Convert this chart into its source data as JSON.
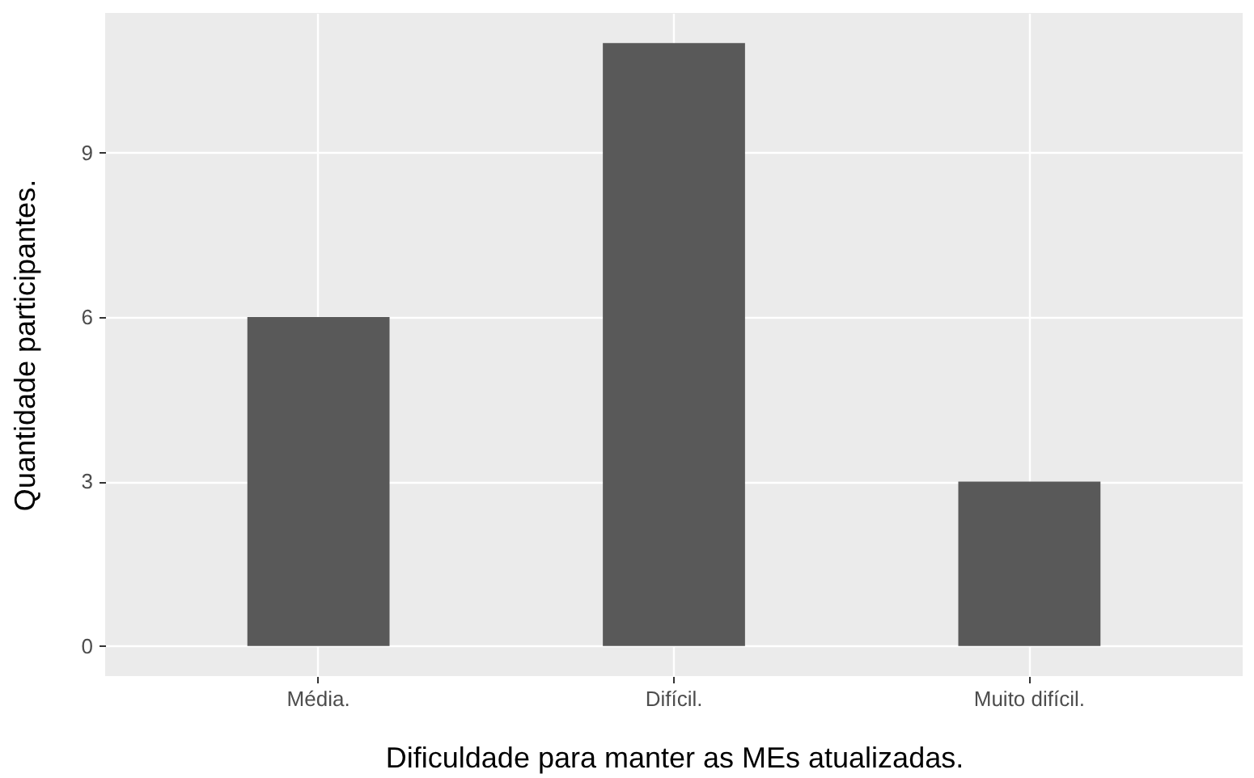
{
  "chart_data": {
    "type": "bar",
    "xlabel": "Dificuldade para manter as MEs atualizadas.",
    "ylabel": "Quantidade participantes.",
    "categories": [
      "Média.",
      "Difícil.",
      "Muito difícil."
    ],
    "values": [
      6,
      11,
      3
    ],
    "color": "#595959",
    "ylim": [
      -0.55,
      11.55
    ],
    "yticks": [
      0,
      3,
      6,
      9
    ],
    "grid": true
  }
}
